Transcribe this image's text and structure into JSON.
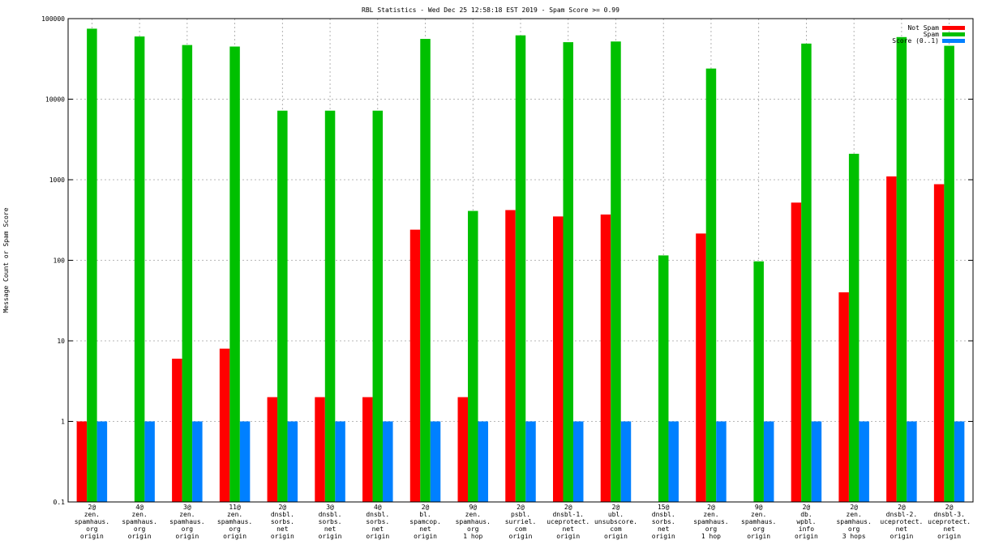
{
  "chart_data": {
    "type": "bar",
    "title": "RBL Statistics - Wed Dec 25 12:58:18 EST 2019 - Spam Score >= 0.99",
    "xlabel": "",
    "ylabel": "Message Count or Spam Score",
    "yscale": "log",
    "ylim": [
      0.1,
      100000
    ],
    "yticks": [
      {
        "value": 0.1,
        "label": "0.1"
      },
      {
        "value": 1,
        "label": "1"
      },
      {
        "value": 10,
        "label": "10"
      },
      {
        "value": 100,
        "label": "100"
      },
      {
        "value": 1000,
        "label": "1000"
      },
      {
        "value": 10000,
        "label": "10000"
      },
      {
        "value": 100000,
        "label": "100000"
      }
    ],
    "grid": true,
    "legend_position": "top-right",
    "categories": [
      [
        "2@",
        "zen.",
        "spamhaus.",
        "org",
        "origin"
      ],
      [
        "4@",
        "zen.",
        "spamhaus.",
        "org",
        "origin"
      ],
      [
        "3@",
        "zen.",
        "spamhaus.",
        "org",
        "origin"
      ],
      [
        "11@",
        "zen.",
        "spamhaus.",
        "org",
        "origin"
      ],
      [
        "2@",
        "dnsbl.",
        "sorbs.",
        "net",
        "origin"
      ],
      [
        "3@",
        "dnsbl.",
        "sorbs.",
        "net",
        "origin"
      ],
      [
        "4@",
        "dnsbl.",
        "sorbs.",
        "net",
        "origin"
      ],
      [
        "2@",
        "bl.",
        "spamcop.",
        "net",
        "origin"
      ],
      [
        "9@",
        "zen.",
        "spamhaus.",
        "org",
        "1 hop"
      ],
      [
        "2@",
        "psbl.",
        "surriel.",
        "com",
        "origin"
      ],
      [
        "2@",
        "dnsbl-1.",
        "uceprotect.",
        "net",
        "origin"
      ],
      [
        "2@",
        "ubl.",
        "unsubscore.",
        "com",
        "origin"
      ],
      [
        "15@",
        "dnsbl.",
        "sorbs.",
        "net",
        "origin"
      ],
      [
        "2@",
        "zen.",
        "spamhaus.",
        "org",
        "1 hop"
      ],
      [
        "9@",
        "zen.",
        "spamhaus.",
        "org",
        "origin"
      ],
      [
        "2@",
        "db.",
        "wpbl.",
        "info",
        "origin"
      ],
      [
        "2@",
        "zen.",
        "spamhaus.",
        "org",
        "3 hops"
      ],
      [
        "2@",
        "dnsbl-2.",
        "uceprotect.",
        "net",
        "origin"
      ],
      [
        "2@",
        "dnsbl-3.",
        "uceprotect.",
        "net",
        "origin"
      ]
    ],
    "series": [
      {
        "name": "Not Spam",
        "color": "#ff0000",
        "values": [
          1,
          null,
          6,
          8,
          2,
          2,
          2,
          240,
          2,
          420,
          350,
          370,
          null,
          215,
          null,
          520,
          40,
          1100,
          880
        ]
      },
      {
        "name": "Spam",
        "color": "#00c000",
        "values": [
          75000,
          60000,
          47000,
          45000,
          7200,
          7200,
          7200,
          56000,
          410,
          62000,
          51000,
          52000,
          115,
          24000,
          97,
          49000,
          2100,
          59000,
          46000
        ]
      },
      {
        "name": "Score (0..1)",
        "color": "#0080ff",
        "values": [
          1,
          1,
          1,
          1,
          1,
          1,
          1,
          1,
          1,
          1,
          1,
          1,
          1,
          1,
          1,
          1,
          1,
          1,
          1
        ]
      }
    ]
  }
}
